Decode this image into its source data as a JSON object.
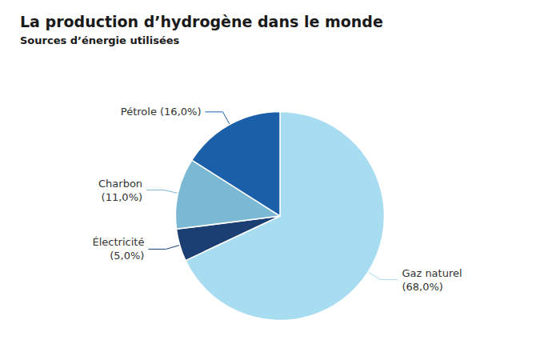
{
  "chart_data": {
    "type": "pie",
    "title": "La production d’hydrogène dans le monde",
    "subtitle": "Sources d’énergie utilisées",
    "categories": [
      "Gaz naturel",
      "Électricité",
      "Charbon",
      "Pétrole"
    ],
    "values": [
      68.0,
      5.0,
      11.0,
      16.0
    ],
    "value_labels": [
      "Gaz naturel\n(68,0%)",
      "Électricité\n(5,0%)",
      "Charbon\n(11,0%)",
      "Pétrole (16,0%)"
    ],
    "colors": [
      "#A8DCF0",
      "#1B3F72",
      "#7AB8D4",
      "#1B5FA8"
    ],
    "data_labels": true
  }
}
